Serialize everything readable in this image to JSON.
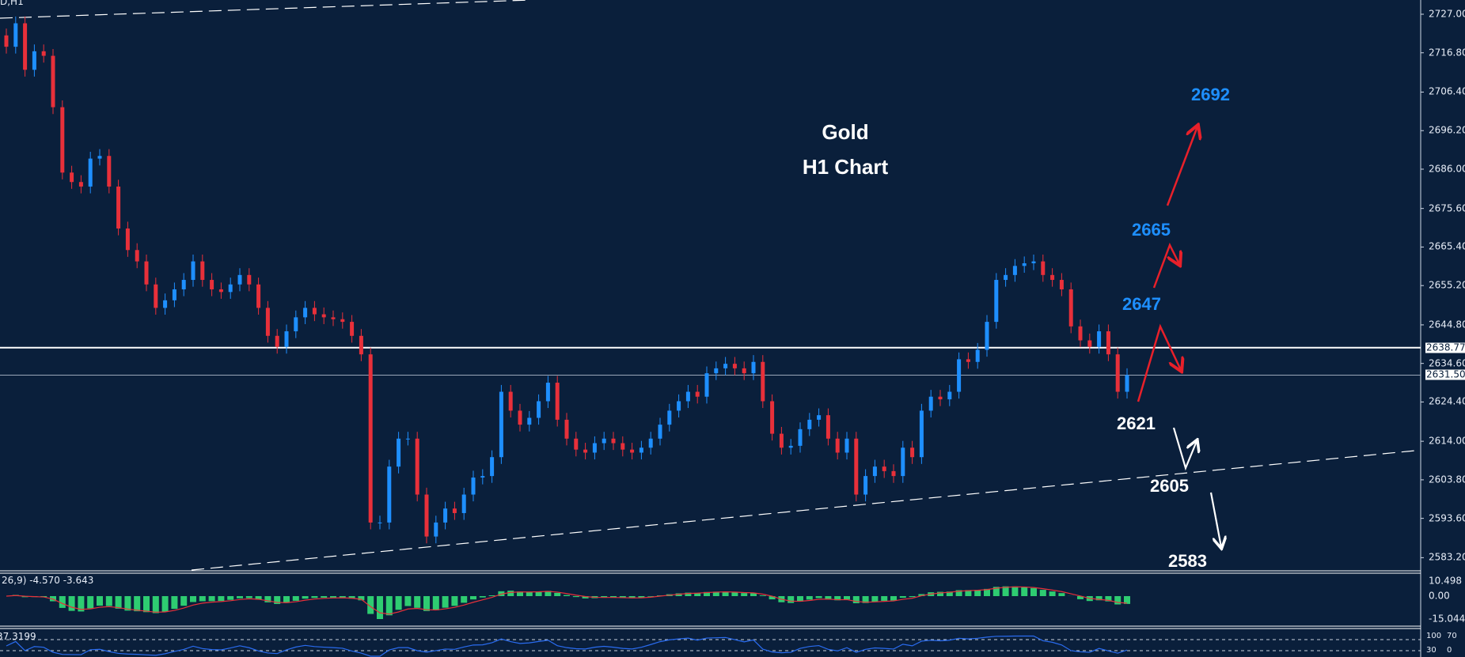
{
  "header": {
    "symbol_label": "D,H1"
  },
  "annotations": {
    "title_line1": "Gold",
    "title_line2": "H1 Chart",
    "targets_up": [
      "2692",
      "2665",
      "2647"
    ],
    "targets_down": [
      "2621",
      "2605",
      "2583"
    ]
  },
  "colors": {
    "background": "#0a1f3b",
    "bull": "#1e8fff",
    "bear": "#e8303a",
    "macd_hist": "#2ecc71",
    "macd_signal": "#e8303a",
    "rsi": "#2a6cf0",
    "arrow_up": "#e8202a",
    "arrow_down": "#ffffff"
  },
  "indicators": {
    "macd_label": "26,9) -4.570 -3.643",
    "macd_ticks": [
      "10.498",
      "0.00",
      "-15.044"
    ],
    "rsi_label": "37.3199",
    "rsi_ticks": [
      "100",
      "70",
      "30",
      "0"
    ]
  },
  "chart_data": {
    "type": "candlestick",
    "symbol": "Gold",
    "timeframe": "H1",
    "ylim": [
      2580,
      2730
    ],
    "price_ticks": [
      "2727.00",
      "2716.80",
      "2706.40",
      "2696.20",
      "2686.00",
      "2675.60",
      "2665.40",
      "2655.20",
      "2644.80",
      "2634.60",
      "2624.40",
      "2614.00",
      "2603.80",
      "2593.60",
      "2583.20"
    ],
    "horizontal_levels": [
      {
        "price": 2638.77,
        "label": "2638.77"
      },
      {
        "price": 2631.5,
        "label": "2631.50"
      }
    ],
    "closes": [
      2718.4,
      2724.6,
      2712.3,
      2717.2,
      2716,
      2702.4,
      2685.1,
      2682.6,
      2681.4,
      2688.8,
      2689.5,
      2681.4,
      2670.3,
      2664.6,
      2661.6,
      2655.5,
      2649.3,
      2651.3,
      2654.2,
      2656.7,
      2661.6,
      2656.7,
      2654.2,
      2653.5,
      2655.5,
      2658,
      2655.5,
      2649.3,
      2641.9,
      2639,
      2643.1,
      2646.8,
      2649.3,
      2647.6,
      2646.8,
      2646.3,
      2645.6,
      2641.9,
      2637,
      2592.5,
      2592.5,
      2607.3,
      2614.7,
      2614.7,
      2599.9,
      2588.8,
      2592.5,
      2596.2,
      2595,
      2599.9,
      2604.4,
      2604.8,
      2609.8,
      2627.1,
      2622.1,
      2618.4,
      2620.2,
      2624.6,
      2629.5,
      2619.7,
      2614.7,
      2611.8,
      2611,
      2613.5,
      2614.7,
      2613.5,
      2611.8,
      2611,
      2612.3,
      2614.7,
      2618.4,
      2622.1,
      2624.6,
      2627.1,
      2625.8,
      2632,
      2633.3,
      2634.5,
      2633.3,
      2632,
      2635,
      2624.6,
      2616,
      2612.3,
      2612.8,
      2617.2,
      2619.7,
      2620.9,
      2614.7,
      2611,
      2614.7,
      2599.9,
      2604.8,
      2607.3,
      2606.1,
      2604.8,
      2612.3,
      2609.8,
      2622.1,
      2625.8,
      2625.1,
      2627.1,
      2635.7,
      2635,
      2638.2,
      2645.6,
      2656.7,
      2658,
      2660.4,
      2661.1,
      2661.6,
      2658,
      2656.7,
      2654.2,
      2644.4,
      2640.7,
      2639,
      2643.1,
      2637,
      2627.1,
      2631.5
    ],
    "grid": false
  }
}
